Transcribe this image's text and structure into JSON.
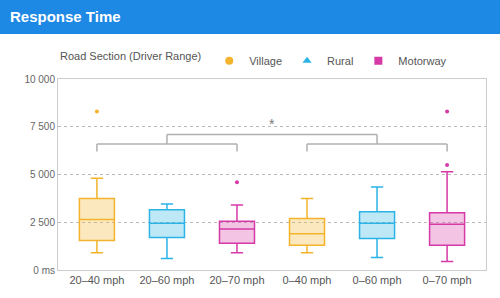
{
  "chart_data": {
    "type": "box",
    "title": "Response Time",
    "legend_title": "Road Section (Driver Range)",
    "legend": "top left",
    "grid": true,
    "categories": [
      "20–40 mph",
      "20–60 mph",
      "20–70 mph",
      "0–40 mph",
      "0–60 mph",
      "0–70 mph"
    ],
    "ylim": [
      0,
      10000
    ],
    "yticks": [
      {
        "value": 0,
        "label": "0 ms"
      },
      {
        "value": 2500,
        "label": "2 500"
      },
      {
        "value": 5000,
        "label": "5 000"
      },
      {
        "value": 7500,
        "label": "7 500"
      },
      {
        "value": 10000,
        "label": "10 000"
      }
    ],
    "series": [
      {
        "name": "Village",
        "color": "#f3b32c",
        "marker": "circle",
        "x": [
          "20–40 mph",
          "0–40 mph"
        ],
        "lowerfence": [
          900,
          900
        ],
        "q1": [
          1550,
          1300
        ],
        "median": [
          2650,
          1900
        ],
        "q3": [
          3750,
          2700
        ],
        "upperfence": [
          4800,
          3750
        ],
        "outliers": [
          [
            8300
          ],
          []
        ]
      },
      {
        "name": "Rural",
        "color": "#2bb3e6",
        "marker": "triangle-up",
        "x": [
          "20–60 mph",
          "0–60 mph"
        ],
        "lowerfence": [
          600,
          650
        ],
        "q1": [
          1700,
          1650
        ],
        "median": [
          2450,
          2450
        ],
        "q3": [
          3150,
          3050
        ],
        "upperfence": [
          3450,
          4350
        ],
        "outliers": [
          [],
          []
        ]
      },
      {
        "name": "Motorway",
        "color": "#d63aa6",
        "marker": "square",
        "x": [
          "20–70 mph",
          "0–70 mph"
        ],
        "lowerfence": [
          900,
          450
        ],
        "q1": [
          1400,
          1300
        ],
        "median": [
          2150,
          2400
        ],
        "q3": [
          2550,
          3000
        ],
        "upperfence": [
          3400,
          5150
        ],
        "outliers": [
          [
            4600
          ],
          [
            5500,
            8300
          ]
        ]
      }
    ],
    "annotations": [
      {
        "text": "*",
        "groups": [
          [
            "20–40 mph",
            "20–60 mph",
            "20–70 mph"
          ],
          [
            "0–40 mph",
            "0–60 mph",
            "0–70 mph"
          ]
        ]
      }
    ]
  }
}
